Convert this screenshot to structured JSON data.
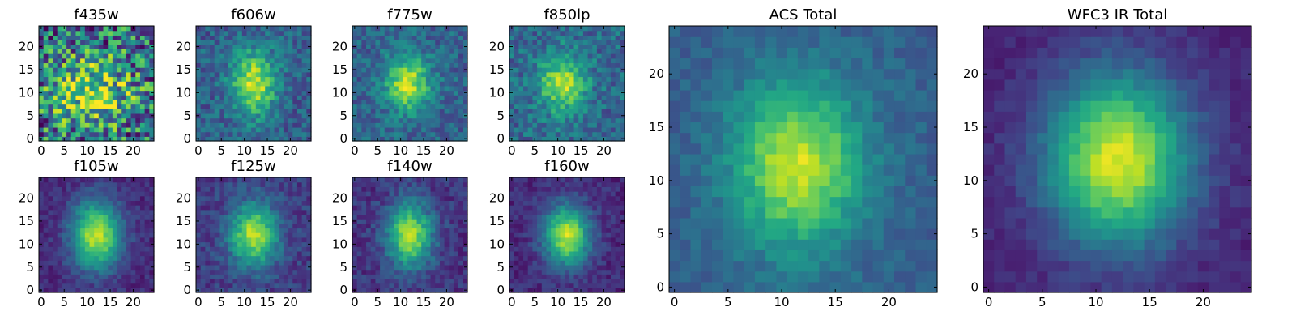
{
  "chart_data": [
    {
      "type": "heatmap",
      "title": "f435w",
      "colormap": "viridis",
      "grid_size": [
        25,
        25
      ],
      "center": [
        11,
        10
      ],
      "core_width": 6.5,
      "core_height": 5.5,
      "peak": 0.48,
      "noise": 0.42,
      "floor": 0.35,
      "xlim": [
        -0.5,
        24.5
      ],
      "ylim": [
        -0.5,
        24.5
      ],
      "xticks": [
        0,
        5,
        10,
        15,
        20
      ],
      "yticks": [
        0,
        5,
        10,
        15,
        20
      ],
      "grid": false,
      "legend": "none"
    },
    {
      "type": "heatmap",
      "title": "f606w",
      "colormap": "viridis",
      "grid_size": [
        25,
        25
      ],
      "center": [
        12,
        12
      ],
      "core_width": 3.4,
      "core_height": 5.0,
      "peak": 0.62,
      "noise": 0.15,
      "floor": 0.3,
      "xlim": [
        -0.5,
        24.5
      ],
      "ylim": [
        -0.5,
        24.5
      ],
      "xticks": [
        0,
        5,
        10,
        15,
        20
      ],
      "yticks": [
        0,
        5,
        10,
        15,
        20
      ],
      "grid": false,
      "legend": "none"
    },
    {
      "type": "heatmap",
      "title": "f775w",
      "colormap": "viridis",
      "grid_size": [
        25,
        25
      ],
      "center": [
        11.5,
        12
      ],
      "core_width": 3.3,
      "core_height": 4.2,
      "peak": 0.6,
      "noise": 0.14,
      "floor": 0.32,
      "xlim": [
        -0.5,
        24.5
      ],
      "ylim": [
        -0.5,
        24.5
      ],
      "xticks": [
        0,
        5,
        10,
        15,
        20
      ],
      "yticks": [
        0,
        5,
        10,
        15,
        20
      ],
      "grid": false,
      "legend": "none"
    },
    {
      "type": "heatmap",
      "title": "f850lp",
      "colormap": "viridis",
      "grid_size": [
        25,
        25
      ],
      "center": [
        11,
        12
      ],
      "core_width": 3.6,
      "core_height": 4.6,
      "peak": 0.52,
      "noise": 0.16,
      "floor": 0.34,
      "xlim": [
        -0.5,
        24.5
      ],
      "ylim": [
        -0.5,
        24.5
      ],
      "xticks": [
        0,
        5,
        10,
        15,
        20
      ],
      "yticks": [
        0,
        5,
        10,
        15,
        20
      ],
      "grid": false,
      "legend": "none"
    },
    {
      "type": "heatmap",
      "title": "f105w",
      "colormap": "viridis",
      "grid_size": [
        25,
        25
      ],
      "center": [
        12,
        12
      ],
      "core_width": 3.8,
      "core_height": 5.2,
      "peak": 0.78,
      "noise": 0.08,
      "floor": 0.12,
      "xlim": [
        -0.5,
        24.5
      ],
      "ylim": [
        -0.5,
        24.5
      ],
      "xticks": [
        0,
        5,
        10,
        15,
        20
      ],
      "yticks": [
        0,
        5,
        10,
        15,
        20
      ],
      "grid": false,
      "legend": "none"
    },
    {
      "type": "heatmap",
      "title": "f125w",
      "colormap": "viridis",
      "grid_size": [
        25,
        25
      ],
      "center": [
        12,
        12
      ],
      "core_width": 3.6,
      "core_height": 4.8,
      "peak": 0.7,
      "noise": 0.1,
      "floor": 0.18,
      "xlim": [
        -0.5,
        24.5
      ],
      "ylim": [
        -0.5,
        24.5
      ],
      "xticks": [
        0,
        5,
        10,
        15,
        20
      ],
      "yticks": [
        0,
        5,
        10,
        15,
        20
      ],
      "grid": false,
      "legend": "none"
    },
    {
      "type": "heatmap",
      "title": "f140w",
      "colormap": "viridis",
      "grid_size": [
        25,
        25
      ],
      "center": [
        12,
        12
      ],
      "core_width": 3.5,
      "core_height": 5.0,
      "peak": 0.72,
      "noise": 0.1,
      "floor": 0.15,
      "xlim": [
        -0.5,
        24.5
      ],
      "ylim": [
        -0.5,
        24.5
      ],
      "xticks": [
        0,
        5,
        10,
        15,
        20
      ],
      "yticks": [
        0,
        5,
        10,
        15,
        20
      ],
      "grid": false,
      "legend": "none"
    },
    {
      "type": "heatmap",
      "title": "f160w",
      "colormap": "viridis",
      "grid_size": [
        25,
        25
      ],
      "center": [
        12,
        12
      ],
      "core_width": 3.5,
      "core_height": 4.6,
      "peak": 0.8,
      "noise": 0.08,
      "floor": 0.12,
      "xlim": [
        -0.5,
        24.5
      ],
      "ylim": [
        -0.5,
        24.5
      ],
      "xticks": [
        0,
        5,
        10,
        15,
        20
      ],
      "yticks": [
        0,
        5,
        10,
        15,
        20
      ],
      "grid": false,
      "legend": "none"
    },
    {
      "type": "heatmap",
      "title": "ACS Total",
      "colormap": "viridis",
      "grid_size": [
        25,
        25
      ],
      "center": [
        11.5,
        11.5
      ],
      "core_width": 4.2,
      "core_height": 5.4,
      "peak": 0.62,
      "noise": 0.07,
      "floor": 0.3,
      "xlim": [
        -0.5,
        24.5
      ],
      "ylim": [
        -0.5,
        24.5
      ],
      "xticks": [
        0,
        5,
        10,
        15,
        20
      ],
      "yticks": [
        0,
        5,
        10,
        15,
        20
      ],
      "grid": false,
      "legend": "none"
    },
    {
      "type": "heatmap",
      "title": "WFC3 IR Total",
      "colormap": "viridis",
      "grid_size": [
        25,
        25
      ],
      "center": [
        12,
        12
      ],
      "core_width": 4.6,
      "core_height": 5.6,
      "peak": 0.85,
      "noise": 0.05,
      "floor": 0.1,
      "xlim": [
        -0.5,
        24.5
      ],
      "ylim": [
        -0.5,
        24.5
      ],
      "xticks": [
        0,
        5,
        10,
        15,
        20
      ],
      "yticks": [
        0,
        5,
        10,
        15,
        20
      ],
      "grid": false,
      "legend": "none"
    }
  ]
}
